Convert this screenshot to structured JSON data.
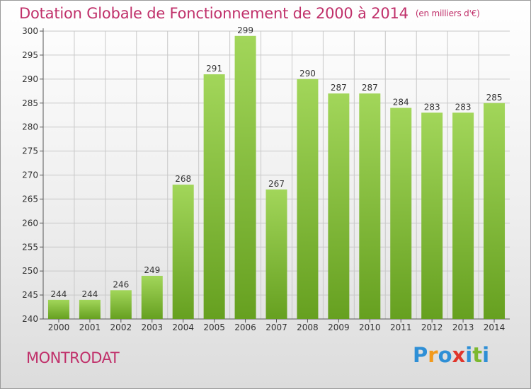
{
  "title": "Dotation Globale de Fonctionnement de 2000 à 2014",
  "subtitle": "(en milliers d'€)",
  "commune": "MONTRODAT",
  "logo": {
    "text": "Proxiti",
    "letter_colors": [
      "#2e8fd6",
      "#f29a1c",
      "#2e8fd6",
      "#e0352b",
      "#2e8fd6",
      "#7cb82f",
      "#2e8fd6"
    ]
  },
  "colors": {
    "accent": "#c0306a",
    "bar_top": "#a2d65a",
    "bar_bottom": "#66a020",
    "grid": "#c8c8c8"
  },
  "chart_data": {
    "type": "bar",
    "categories": [
      "2000",
      "2001",
      "2002",
      "2003",
      "2004",
      "2005",
      "2006",
      "2007",
      "2008",
      "2009",
      "2010",
      "2011",
      "2012",
      "2013",
      "2014"
    ],
    "values": [
      244,
      244,
      246,
      249,
      268,
      291,
      299,
      267,
      290,
      287,
      287,
      284,
      283,
      283,
      285
    ],
    "ylim": [
      240,
      300
    ],
    "yticks": [
      240,
      245,
      250,
      255,
      260,
      265,
      270,
      275,
      280,
      285,
      290,
      295,
      300
    ],
    "grid": true,
    "legend": "none"
  }
}
